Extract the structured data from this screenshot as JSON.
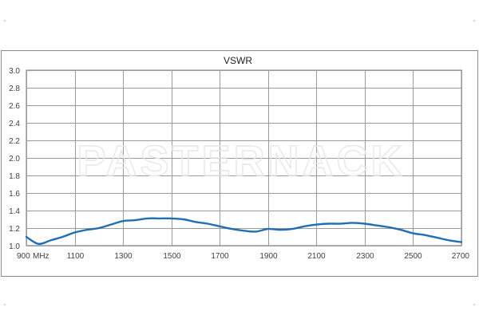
{
  "chart_data": {
    "type": "line",
    "title": "VSWR",
    "xlabel": "",
    "ylabel": "",
    "x_unit": "MHz",
    "xlim": [
      900,
      2700
    ],
    "ylim": [
      1.0,
      3.0
    ],
    "x_ticks": [
      900,
      1100,
      1300,
      1500,
      1700,
      1900,
      2100,
      2300,
      2500,
      2700
    ],
    "y_ticks": [
      "1.0",
      "1.2",
      "1.4",
      "1.6",
      "1.8",
      "2.0",
      "2.2",
      "2.4",
      "2.6",
      "2.8",
      "3.0"
    ],
    "grid": true,
    "legend": "none",
    "watermark": "PASTERNACK",
    "colors": {
      "line": "#1f6fb4",
      "grid": "#9a9a9a",
      "frame": "#8a8a8a",
      "watermark": "#e7e7e7"
    },
    "series": [
      {
        "x": [
          900,
          950,
          1000,
          1050,
          1100,
          1150,
          1200,
          1250,
          1300,
          1350,
          1400,
          1450,
          1500,
          1550,
          1600,
          1650,
          1700,
          1750,
          1800,
          1850,
          1900,
          1950,
          2000,
          2050,
          2100,
          2150,
          2200,
          2250,
          2300,
          2350,
          2400,
          2450,
          2500,
          2550,
          2600,
          2650,
          2700
        ],
        "y": [
          1.1,
          1.02,
          1.06,
          1.1,
          1.15,
          1.18,
          1.2,
          1.24,
          1.28,
          1.29,
          1.31,
          1.31,
          1.31,
          1.3,
          1.27,
          1.25,
          1.22,
          1.19,
          1.17,
          1.16,
          1.19,
          1.18,
          1.19,
          1.22,
          1.24,
          1.25,
          1.25,
          1.26,
          1.25,
          1.23,
          1.21,
          1.18,
          1.14,
          1.12,
          1.09,
          1.06,
          1.04
        ]
      }
    ]
  }
}
